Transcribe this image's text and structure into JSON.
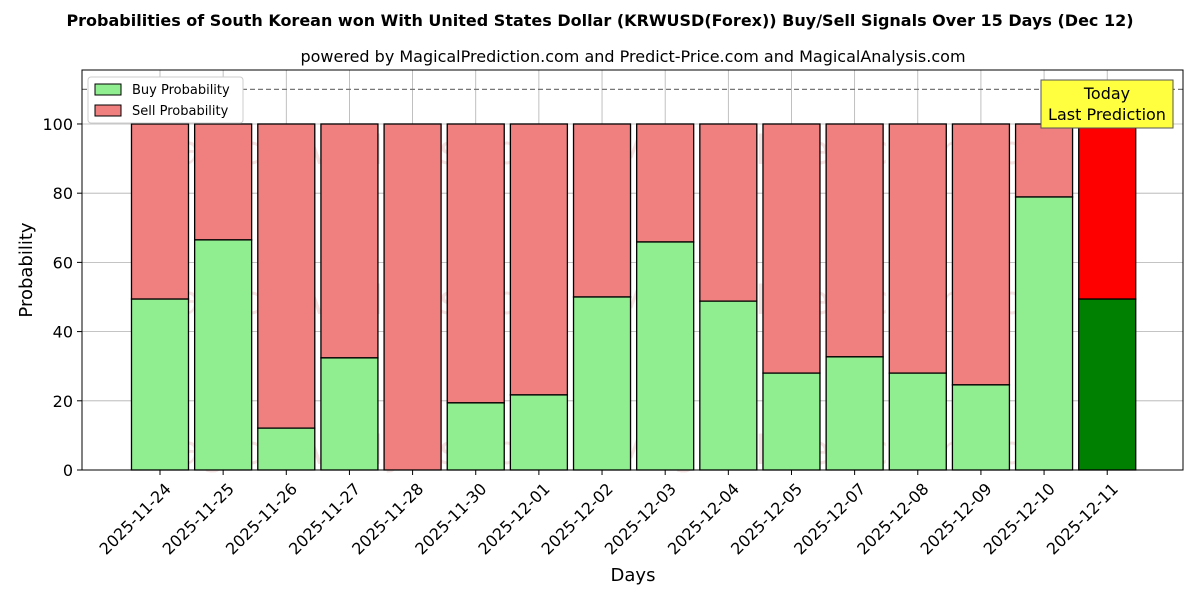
{
  "chart_data": {
    "type": "bar",
    "stacked": true,
    "title": "Probabilities of South Korean won With United States Dollar (KRWUSD(Forex)) Buy/Sell Signals Over 15 Days (Dec 12)",
    "subtitle": "powered by MagicalPrediction.com and Predict-Price.com and MagicalAnalysis.com",
    "xlabel": "Days",
    "ylabel": "Probability",
    "ylim": [
      0,
      115.6
    ],
    "yticks": [
      0,
      20,
      40,
      60,
      80,
      100
    ],
    "grid": true,
    "legend_position": "top-left",
    "reference_line": 110,
    "categories": [
      "2025-11-24",
      "2025-11-25",
      "2025-11-26",
      "2025-11-27",
      "2025-11-28",
      "2025-11-30",
      "2025-12-01",
      "2025-12-02",
      "2025-12-03",
      "2025-12-04",
      "2025-12-05",
      "2025-12-07",
      "2025-12-08",
      "2025-12-09",
      "2025-12-10",
      "2025-12-11"
    ],
    "series": [
      {
        "name": "Buy Probability",
        "color": "#90ee90",
        "highlight_color": "#008000",
        "values": [
          49.4,
          66.5,
          12.1,
          32.4,
          0,
          19.4,
          21.7,
          50.0,
          65.9,
          48.8,
          28.0,
          32.7,
          28.0,
          24.6,
          78.9,
          49.4
        ]
      },
      {
        "name": "Sell Probability",
        "color": "#f08080",
        "highlight_color": "#ff0000",
        "values": [
          50.6,
          33.5,
          87.9,
          67.6,
          100,
          80.6,
          78.3,
          50.0,
          34.1,
          51.2,
          72.0,
          67.3,
          72.0,
          75.4,
          21.1,
          50.6
        ]
      }
    ],
    "annotation": {
      "line1": "Today",
      "line2": "Last Prediction",
      "color": "#ffff40"
    },
    "watermarks": [
      "MagicalAnalysis.com",
      "MagicalPrediction.com"
    ]
  }
}
